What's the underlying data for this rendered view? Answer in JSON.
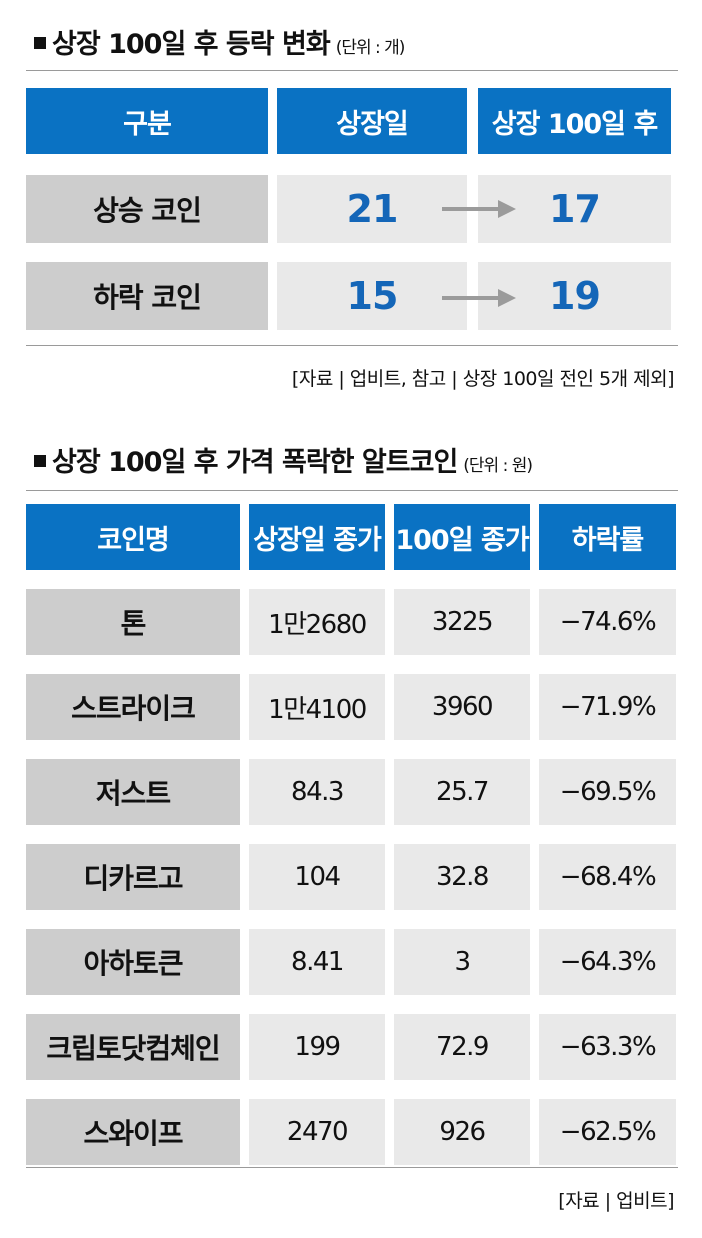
{
  "section1": {
    "title": "상장 100일 후 등락 변화",
    "unit": "(단위 : 개)",
    "headers": [
      "구분",
      "상장일",
      "상장 100일 후"
    ],
    "rows": [
      {
        "label": "상승 코인",
        "at_listing": "21",
        "after_100": "17"
      },
      {
        "label": "하락 코인",
        "at_listing": "15",
        "after_100": "19"
      }
    ],
    "source": "[자료 | 업비트, 참고 | 상장 100일 전인 5개 제외]"
  },
  "section2": {
    "title": "상장 100일 후 가격 폭락한 알트코인",
    "unit": "(단위 : 원)",
    "headers": [
      "코인명",
      "상장일 종가",
      "100일 종가",
      "하락률"
    ],
    "rows": [
      {
        "name": "톤",
        "listing_close": "1만2680",
        "day100_close": "3225",
        "drop": "−74.6%"
      },
      {
        "name": "스트라이크",
        "listing_close": "1만4100",
        "day100_close": "3960",
        "drop": "−71.9%"
      },
      {
        "name": "저스트",
        "listing_close": "84.3",
        "day100_close": "25.7",
        "drop": "−69.5%"
      },
      {
        "name": "디카르고",
        "listing_close": "104",
        "day100_close": "32.8",
        "drop": "−68.4%"
      },
      {
        "name": "아하토큰",
        "listing_close": "8.41",
        "day100_close": "3",
        "drop": "−64.3%"
      },
      {
        "name": "크립토닷컴체인",
        "listing_close": "199",
        "day100_close": "72.9",
        "drop": "−63.3%"
      },
      {
        "name": "스와이프",
        "listing_close": "2470",
        "day100_close": "926",
        "drop": "−62.5%"
      }
    ],
    "source": "[자료 | 업비트]"
  },
  "colors": {
    "header_blue": "#0a72c3",
    "number_blue": "#1466b8",
    "label_gray": "#cdcdcd",
    "value_gray": "#e9e9e9",
    "arrow_gray": "#9b9b9b"
  }
}
